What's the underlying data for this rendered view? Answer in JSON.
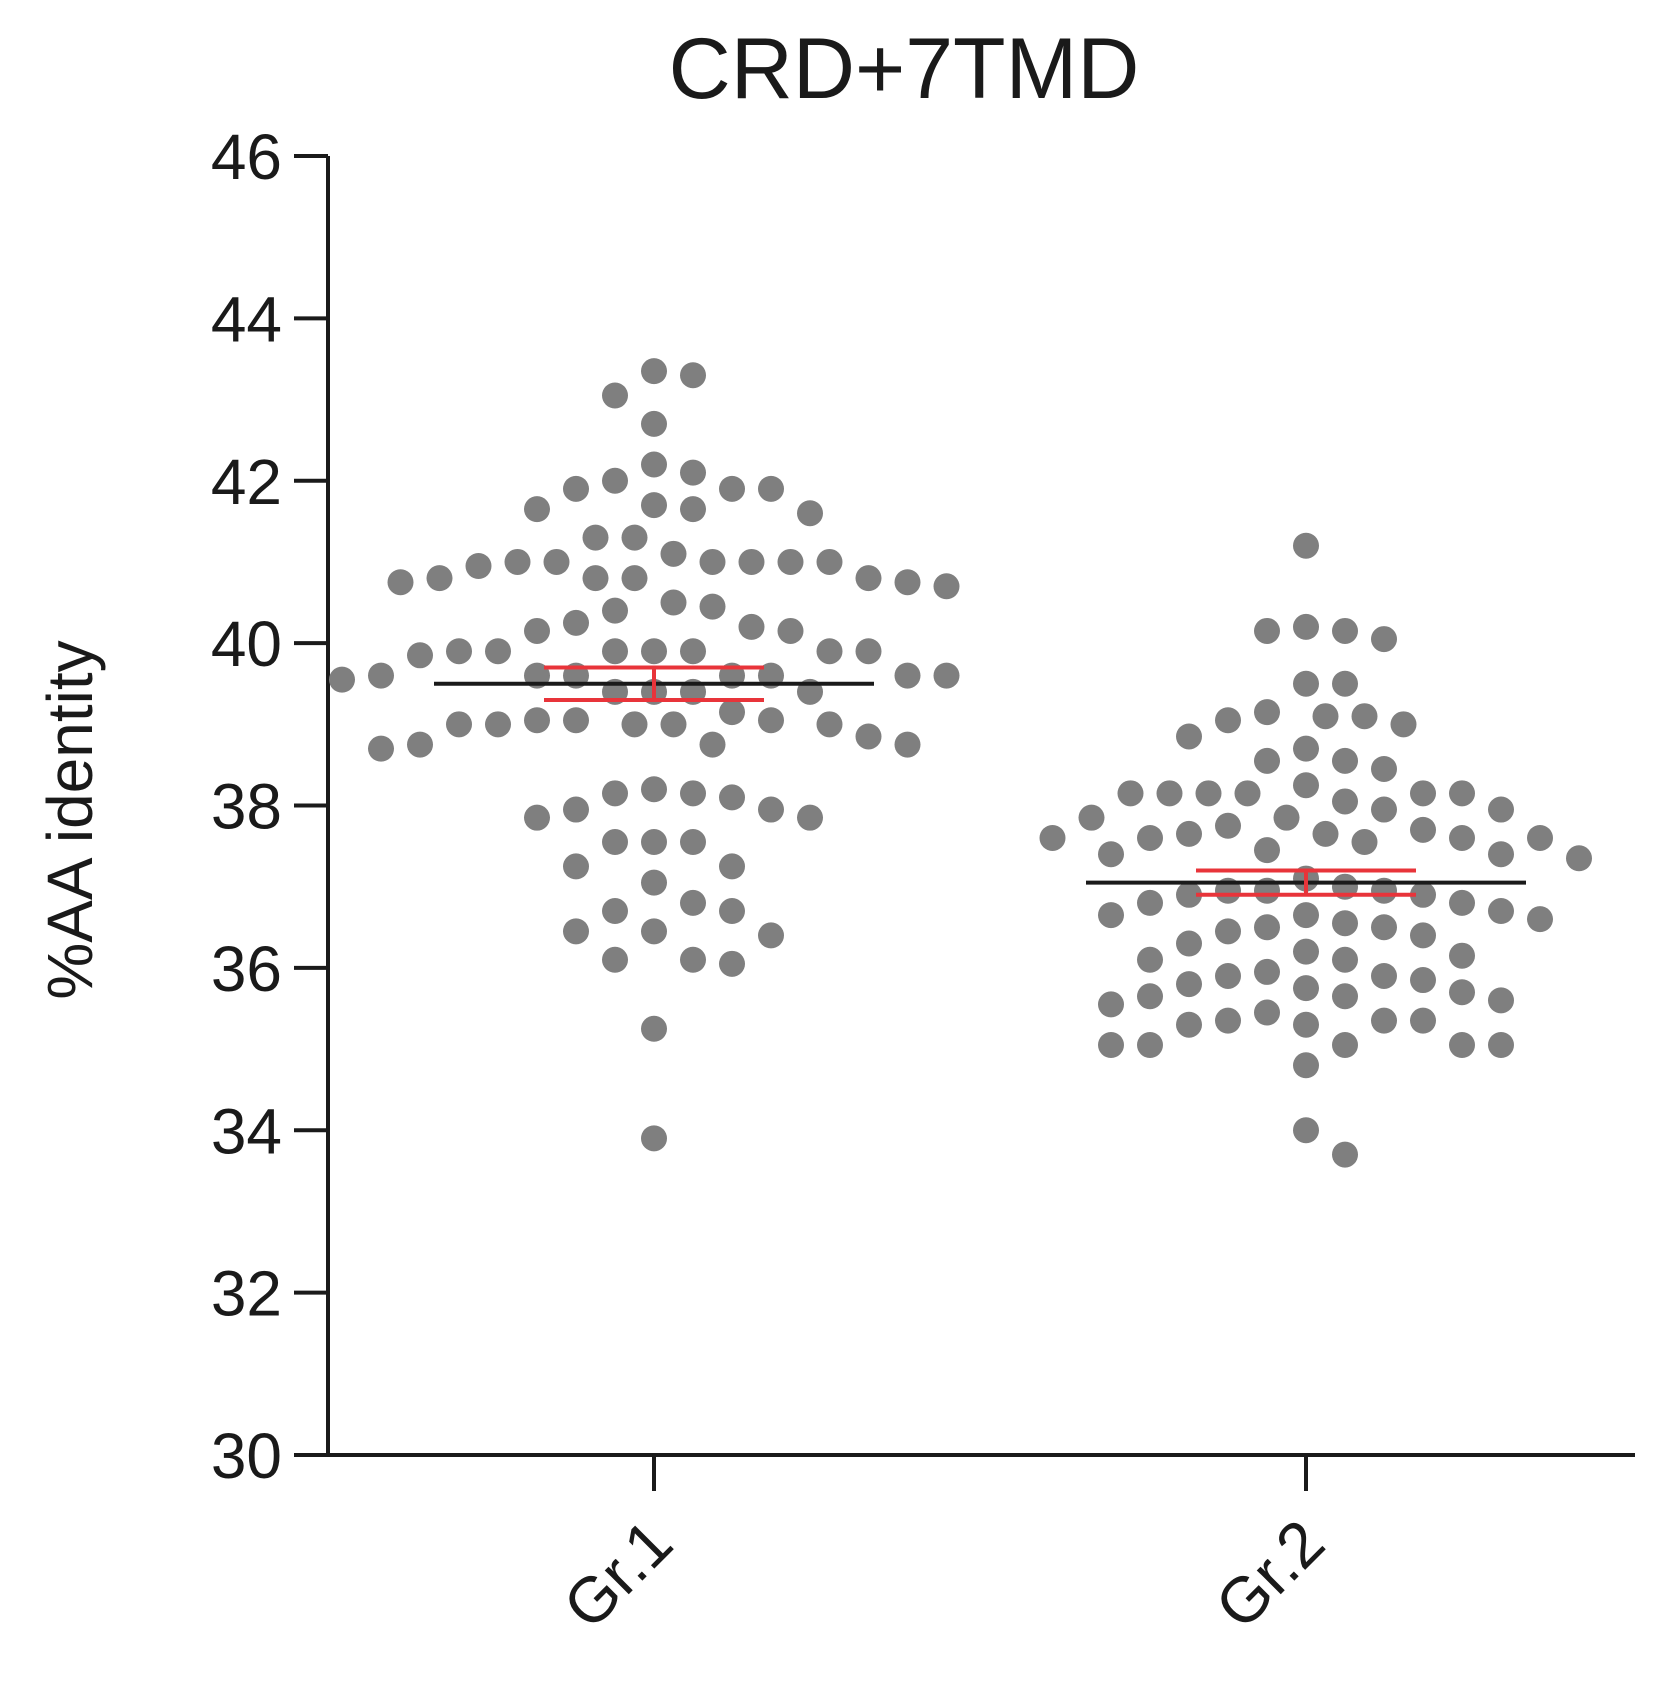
{
  "chart_data": {
    "type": "scatter",
    "subtype": "dot-plot",
    "title": "CRD+7TMD",
    "xlabel": "",
    "ylabel": "%AA identity",
    "ylim": [
      30,
      46
    ],
    "yticks": [
      30,
      32,
      34,
      36,
      38,
      40,
      42,
      44,
      46
    ],
    "categories": [
      "Gr.1",
      "Gr.2"
    ],
    "colors": {
      "points": "#7f7f7f",
      "mean_line": "#1a1a1a",
      "error_bar": "#e8343a",
      "axis": "#1a1a1a"
    },
    "series": [
      {
        "name": "Gr.1",
        "mean": 39.5,
        "sem_low": 39.3,
        "sem_high": 39.7,
        "values": [
          43.3,
          43.35,
          43.05,
          42.7,
          42.2,
          42.0,
          42.1,
          41.9,
          41.9,
          41.9,
          41.7,
          41.65,
          41.6,
          41.65,
          41.3,
          41.3,
          41.1,
          41.0,
          41.0,
          41.0,
          40.95,
          41.0,
          41.0,
          41.0,
          40.8,
          40.8,
          40.75,
          40.7,
          40.75,
          40.8,
          40.8,
          40.45,
          40.5,
          40.4,
          40.25,
          40.15,
          40.15,
          40.2,
          39.9,
          39.9,
          39.9,
          39.9,
          39.85,
          39.9,
          39.9,
          39.9,
          39.6,
          39.6,
          39.6,
          39.55,
          39.6,
          39.6,
          39.6,
          39.6,
          39.4,
          39.4,
          39.4,
          39.4,
          39.0,
          39.0,
          39.05,
          39.05,
          39.05,
          39.15,
          39.0,
          39.0,
          39.0,
          38.85,
          38.75,
          38.7,
          38.75,
          38.75,
          38.2,
          38.15,
          38.1,
          38.15,
          37.95,
          37.85,
          37.85,
          37.95,
          37.55,
          37.55,
          37.55,
          37.25,
          37.25,
          37.05,
          36.7,
          36.7,
          36.8,
          36.4,
          36.45,
          36.45,
          36.1,
          36.05,
          36.1,
          35.25,
          33.9
        ]
      },
      {
        "name": "Gr.2",
        "mean": 37.05,
        "sem_low": 36.9,
        "sem_high": 37.2,
        "values": [
          41.2,
          40.2,
          40.15,
          40.15,
          40.05,
          39.5,
          39.5,
          39.15,
          39.1,
          39.0,
          39.05,
          39.1,
          38.85,
          38.7,
          38.55,
          38.55,
          38.45,
          38.25,
          38.15,
          38.15,
          38.15,
          38.15,
          38.15,
          38.15,
          38.05,
          37.95,
          37.95,
          37.85,
          37.85,
          37.75,
          37.7,
          37.65,
          37.65,
          37.6,
          37.6,
          37.6,
          37.6,
          37.55,
          37.4,
          37.45,
          37.4,
          37.35,
          37.1,
          37.0,
          36.95,
          36.95,
          36.95,
          36.9,
          36.9,
          36.8,
          36.8,
          36.7,
          36.65,
          36.65,
          36.6,
          36.55,
          36.5,
          36.5,
          36.45,
          36.4,
          36.3,
          36.2,
          36.15,
          36.1,
          36.1,
          35.95,
          35.9,
          35.9,
          35.85,
          35.8,
          35.75,
          35.7,
          35.65,
          35.65,
          35.6,
          35.55,
          35.45,
          35.35,
          35.35,
          35.35,
          35.3,
          35.3,
          35.05,
          35.05,
          35.05,
          35.05,
          35.05,
          34.8,
          34.0,
          33.7
        ]
      }
    ]
  }
}
